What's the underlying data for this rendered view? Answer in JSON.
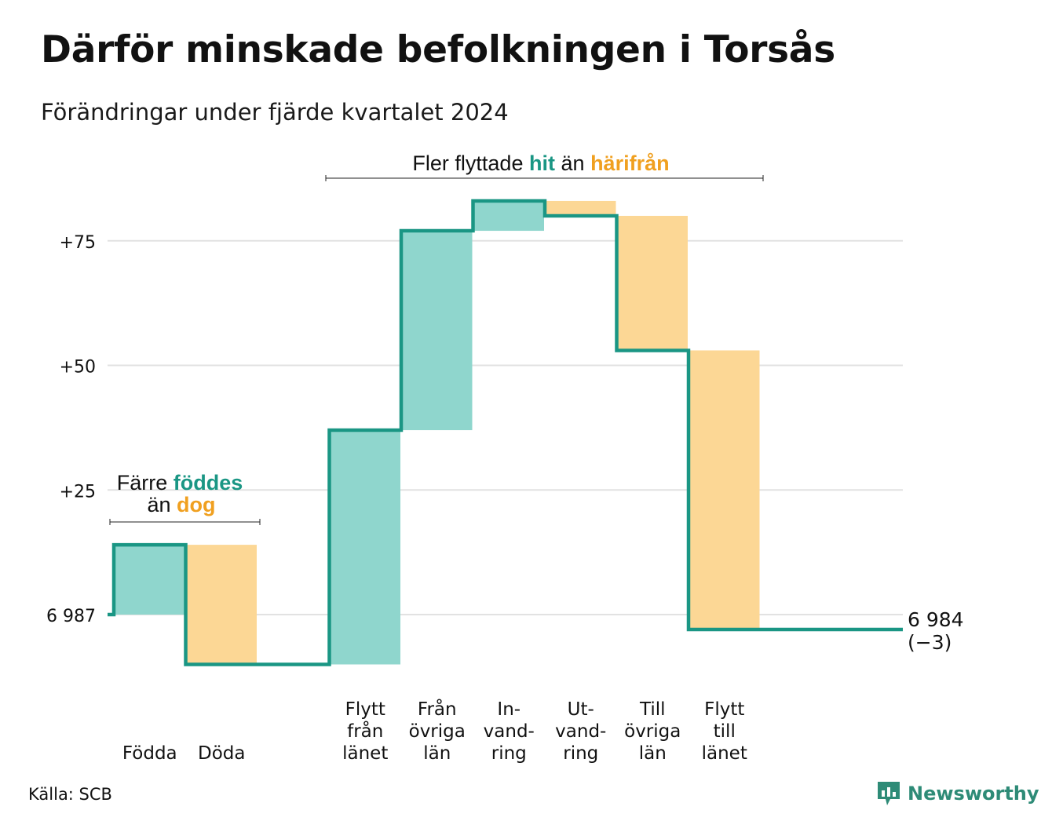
{
  "title": "Därför minskade befolkningen i Torsås",
  "subtitle": "Förändringar under fjärde kvartalet 2024",
  "source": "Källa: SCB",
  "logo_text": "Newsworthy",
  "colors": {
    "increase": "#8fd6cd",
    "decrease": "#fcd795",
    "line": "#1a9684",
    "teal_text": "#1a9684",
    "orange_text": "#f0a020",
    "grid": "#e2e2e2"
  },
  "annotations": {
    "births": {
      "pre": "Färre",
      "hl1": "föddes",
      "mid": "än",
      "hl2": "dog"
    },
    "moves": {
      "pre": "Fler flyttade",
      "hl1": "hit",
      "mid": "än",
      "hl2": "härifrån"
    }
  },
  "chart_data": {
    "type": "waterfall",
    "start_value": 6987,
    "start_label": "6 987",
    "end_value": 6984,
    "end_label": "6 984",
    "end_change_label": "(−3)",
    "y_ticks": [
      {
        "value": 0,
        "label": "6 987"
      },
      {
        "value": 25,
        "label": "+25"
      },
      {
        "value": 50,
        "label": "+50"
      },
      {
        "value": 75,
        "label": "+75"
      }
    ],
    "ylim": [
      -12,
      85
    ],
    "steps": [
      {
        "label_lines": [
          "Födda"
        ],
        "change": 14,
        "kind": "increase"
      },
      {
        "label_lines": [
          "Döda"
        ],
        "change": -24,
        "kind": "decrease"
      },
      {
        "label_lines": [],
        "change": 0,
        "kind": "gap"
      },
      {
        "label_lines": [
          "Flytt",
          "från",
          "länet"
        ],
        "change": 47,
        "kind": "increase"
      },
      {
        "label_lines": [
          "Från",
          "övriga",
          "län"
        ],
        "change": 40,
        "kind": "increase"
      },
      {
        "label_lines": [
          "In-",
          "vand-",
          "ring"
        ],
        "change": 6,
        "kind": "increase"
      },
      {
        "label_lines": [
          "Ut-",
          "vand-",
          "ring"
        ],
        "change": -3,
        "kind": "decrease"
      },
      {
        "label_lines": [
          "Till",
          "övriga",
          "län"
        ],
        "change": -27,
        "kind": "decrease"
      },
      {
        "label_lines": [
          "Flytt",
          "till",
          "länet"
        ],
        "change": -56,
        "kind": "decrease"
      }
    ]
  }
}
